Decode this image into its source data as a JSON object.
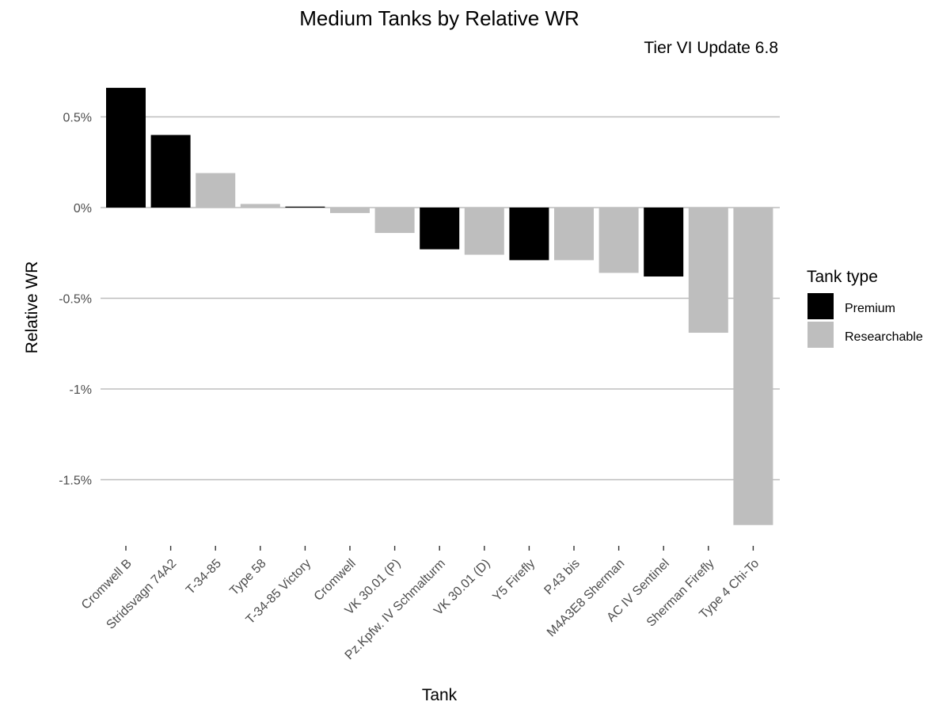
{
  "chart_data": {
    "type": "bar",
    "title": "Medium Tanks by Relative WR",
    "subtitle": "Tier VI Update 6.8",
    "xlabel": "Tank",
    "ylabel": "Relative WR",
    "ylim": [
      -1.75,
      0.66
    ],
    "y_ticks": [
      0.5,
      0,
      -0.5,
      -1,
      -1.5
    ],
    "y_tick_labels": [
      "0.5%",
      "0%",
      "-0.5%",
      "-1%",
      "-1.5%"
    ],
    "grid": true,
    "legend_position": "right",
    "legend": {
      "title": "Tank type",
      "items": [
        {
          "label": "Premium",
          "color": "#000000"
        },
        {
          "label": "Researchable",
          "color": "#bebebe"
        }
      ]
    },
    "categories": [
      "Cromwell B",
      "Stridsvagn 74A2",
      "T-34-85",
      "Type 58",
      "T-34-85 Victory",
      "Cromwell",
      "VK 30.01 (P)",
      "Pz.Kpfw. IV Schmalturm",
      "VK 30.01 (D)",
      "Y5 Firefly",
      "P.43 bis",
      "M4A3E8 Sherman",
      "AC IV Sentinel",
      "Sherman Firefly",
      "Type 4 Chi-To"
    ],
    "values": [
      0.66,
      0.4,
      0.19,
      0.02,
      0.005,
      -0.03,
      -0.14,
      -0.23,
      -0.26,
      -0.29,
      -0.29,
      -0.36,
      -0.38,
      -0.69,
      -1.75
    ],
    "types": [
      "Premium",
      "Premium",
      "Researchable",
      "Researchable",
      "Premium",
      "Researchable",
      "Researchable",
      "Premium",
      "Researchable",
      "Premium",
      "Researchable",
      "Researchable",
      "Premium",
      "Researchable",
      "Researchable"
    ]
  }
}
